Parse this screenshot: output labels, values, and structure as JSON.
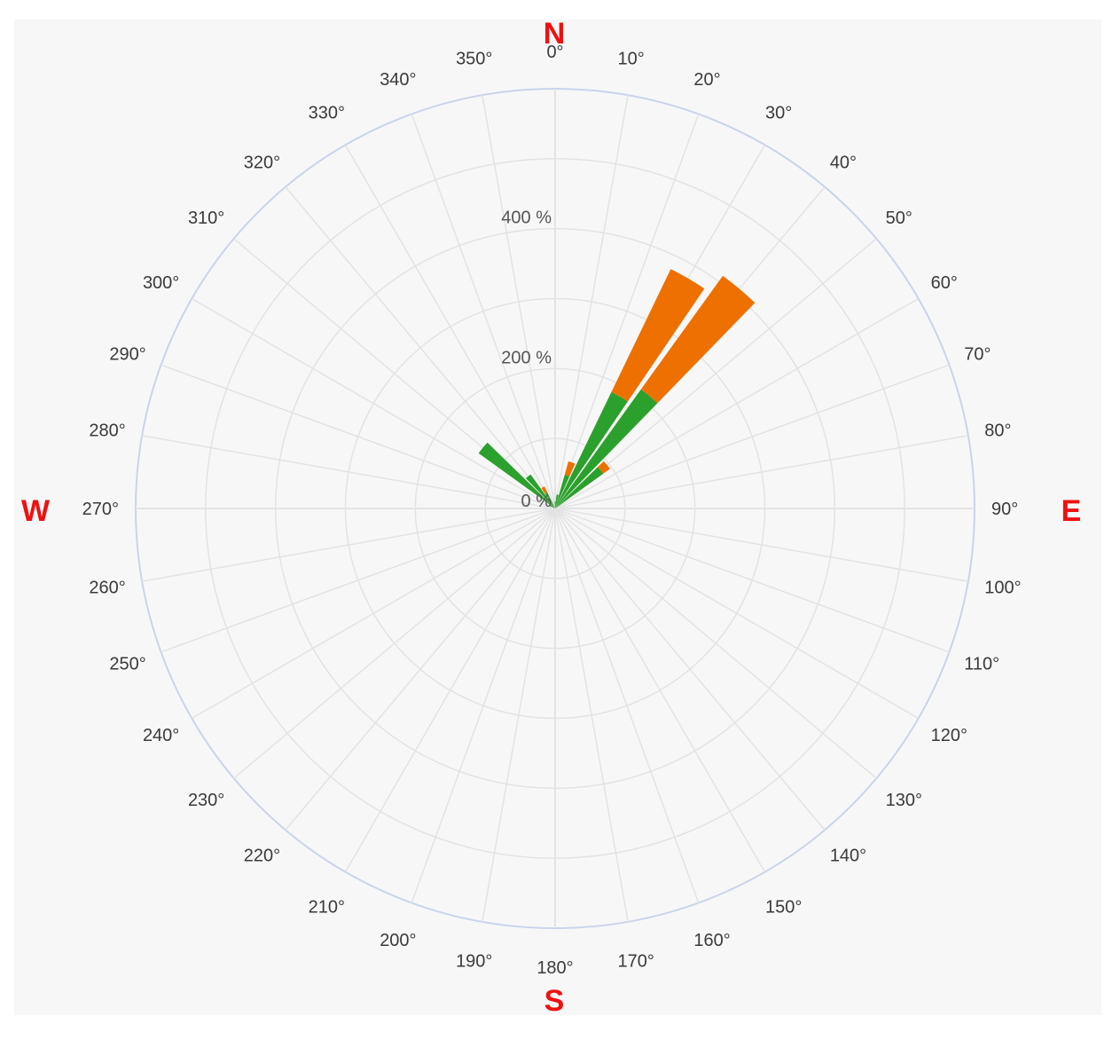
{
  "compass": {
    "north": "N",
    "east": "E",
    "south": "S",
    "west": "W"
  },
  "colors": {
    "green": "#2ca02c",
    "orange": "#ee7000",
    "grid": "#e3e3e3",
    "outer_ring": "#c9d4ea",
    "compass": "#ee1111"
  },
  "chart_data": {
    "type": "windrose",
    "angle_tick_step_deg": 10,
    "angle_ticks": [
      "0°",
      "10°",
      "20°",
      "30°",
      "40°",
      "50°",
      "60°",
      "70°",
      "80°",
      "90°",
      "100°",
      "110°",
      "120°",
      "130°",
      "140°",
      "150°",
      "160°",
      "170°",
      "180°",
      "190°",
      "200°",
      "210°",
      "220°",
      "230°",
      "240°",
      "250°",
      "260°",
      "270°",
      "280°",
      "290°",
      "300°",
      "310°",
      "320°",
      "330°",
      "340°",
      "350°"
    ],
    "radial_ticks": [
      "0 %",
      "200 %",
      "400 %"
    ],
    "radial_tick_values": [
      0,
      200,
      400
    ],
    "radial_max": 600,
    "direction_bin_width_deg": 10,
    "stacked": true,
    "series": [
      {
        "color": "#2ca02c",
        "data": [
          {
            "direction": 0,
            "value": 10
          },
          {
            "direction": 10,
            "value": 20
          },
          {
            "direction": 20,
            "value": 50
          },
          {
            "direction": 30,
            "value": 185
          },
          {
            "direction": 40,
            "value": 210
          },
          {
            "direction": 50,
            "value": 85
          },
          {
            "direction": 330,
            "value": 25
          },
          {
            "direction": 320,
            "value": 60
          },
          {
            "direction": 310,
            "value": 135
          },
          {
            "direction": 300,
            "value": 10
          }
        ]
      },
      {
        "color": "#ee7000",
        "data": [
          {
            "direction": 20,
            "value": 20
          },
          {
            "direction": 30,
            "value": 195
          },
          {
            "direction": 40,
            "value": 200
          },
          {
            "direction": 50,
            "value": 12
          },
          {
            "direction": 330,
            "value": 10
          }
        ]
      }
    ]
  }
}
